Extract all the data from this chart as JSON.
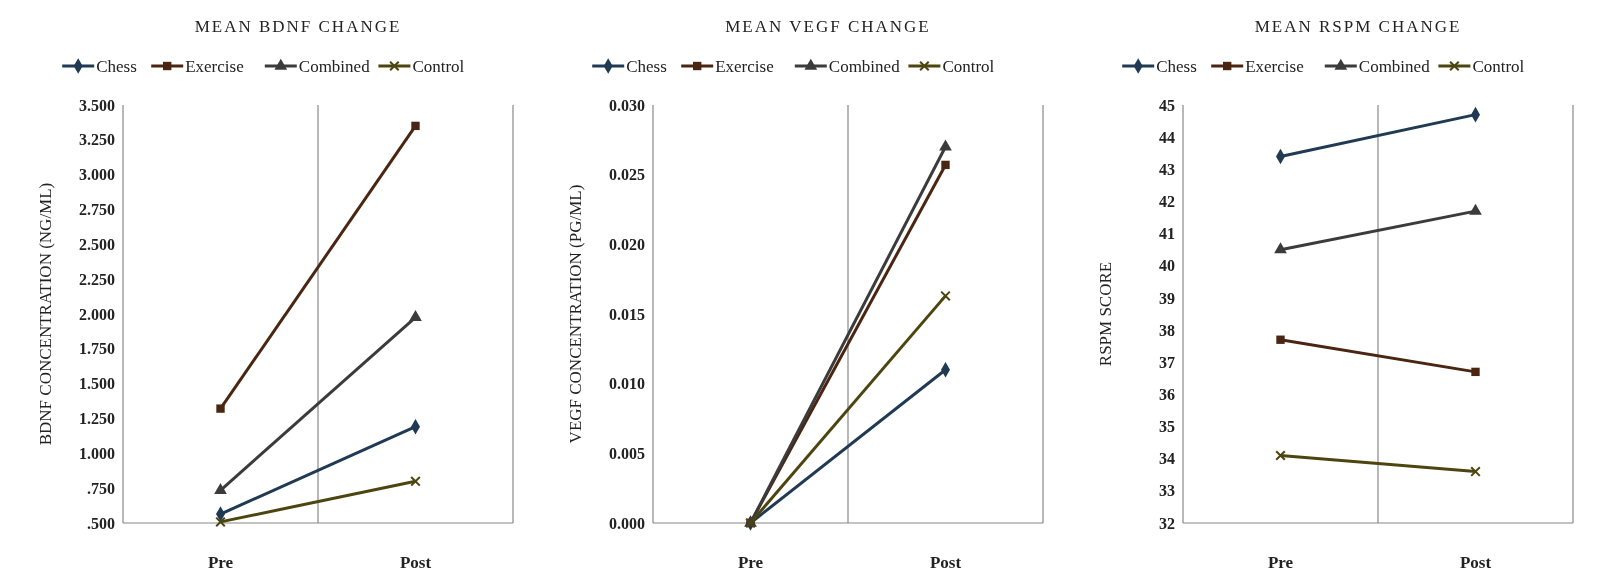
{
  "chart_data": [
    {
      "type": "line",
      "title": "MEAN BDNF CHANGE",
      "ylabel": "BDNF CONCENTRATION (NG/ML)",
      "categories": [
        "Pre",
        "Post"
      ],
      "ylim": [
        0.5,
        3.5
      ],
      "yticks": [
        {
          "value": 0.5,
          "label": ".500"
        },
        {
          "value": 0.75,
          "label": ".750"
        },
        {
          "value": 1,
          "label": "1.000"
        },
        {
          "value": 1.25,
          "label": "1.250"
        },
        {
          "value": 1.5,
          "label": "1.500"
        },
        {
          "value": 1.75,
          "label": "1.750"
        },
        {
          "value": 2,
          "label": "2.000"
        },
        {
          "value": 2.25,
          "label": "2.250"
        },
        {
          "value": 2.5,
          "label": "2.500"
        },
        {
          "value": 2.75,
          "label": "2.750"
        },
        {
          "value": 3,
          "label": "3.000"
        },
        {
          "value": 3.25,
          "label": "3.250"
        },
        {
          "value": 3.5,
          "label": "3.500"
        }
      ],
      "grid": "x",
      "legend": "top",
      "series": [
        {
          "name": "Chess",
          "color": "#1f3a52",
          "marker": "diamond",
          "values": [
            0.564,
            1.191
          ]
        },
        {
          "name": "Exercise",
          "color": "#4a2511",
          "marker": "square",
          "values": [
            1.321,
            3.35
          ]
        },
        {
          "name": "Combined",
          "color": "#3b3b3b",
          "marker": "triangle",
          "values": [
            0.735,
            1.976
          ]
        },
        {
          "name": "Control",
          "color": "#4d4510",
          "marker": "cross",
          "values": [
            0.508,
            0.799
          ]
        }
      ]
    },
    {
      "type": "line",
      "title": "MEAN VEGF CHANGE",
      "ylabel": "VEGF CONCENTRATION (PG/ML)",
      "categories": [
        "Pre",
        "Post"
      ],
      "ylim": [
        0,
        0.03
      ],
      "yticks": [
        {
          "value": 0,
          "label": "0.000"
        },
        {
          "value": 0.005,
          "label": "0.005"
        },
        {
          "value": 0.01,
          "label": "0.010"
        },
        {
          "value": 0.015,
          "label": "0.015"
        },
        {
          "value": 0.02,
          "label": "0.020"
        },
        {
          "value": 0.025,
          "label": "0.025"
        },
        {
          "value": 0.03,
          "label": "0.030"
        }
      ],
      "grid": "x",
      "legend": "top",
      "series": [
        {
          "name": "Chess",
          "color": "#1f3a52",
          "marker": "diamond",
          "values": [
            0,
            0.011
          ]
        },
        {
          "name": "Exercise",
          "color": "#4a2511",
          "marker": "square",
          "values": [
            0,
            0.0257
          ]
        },
        {
          "name": "Combined",
          "color": "#3b3b3b",
          "marker": "triangle",
          "values": [
            0,
            0.027
          ]
        },
        {
          "name": "Control",
          "color": "#4d4510",
          "marker": "cross",
          "values": [
            0,
            0.0163
          ]
        }
      ]
    },
    {
      "type": "line",
      "title": "MEAN RSPM CHANGE",
      "ylabel": "RSPM SCORE",
      "categories": [
        "Pre",
        "Post"
      ],
      "ylim": [
        32,
        45
      ],
      "yticks": [
        32,
        33,
        34,
        35,
        36,
        37,
        38,
        39,
        40,
        41,
        42,
        43,
        44,
        45
      ],
      "grid": "x",
      "legend": "top",
      "series": [
        {
          "name": "Chess",
          "color": "#1f3a52",
          "marker": "diamond",
          "values": [
            43.4,
            44.7
          ]
        },
        {
          "name": "Exercise",
          "color": "#4a2511",
          "marker": "square",
          "values": [
            37.7,
            36.7
          ]
        },
        {
          "name": "Combined",
          "color": "#3b3b3b",
          "marker": "triangle",
          "values": [
            40.5,
            41.7
          ]
        },
        {
          "name": "Control",
          "color": "#4d4510",
          "marker": "cross",
          "values": [
            34.1,
            33.6
          ]
        }
      ]
    }
  ]
}
